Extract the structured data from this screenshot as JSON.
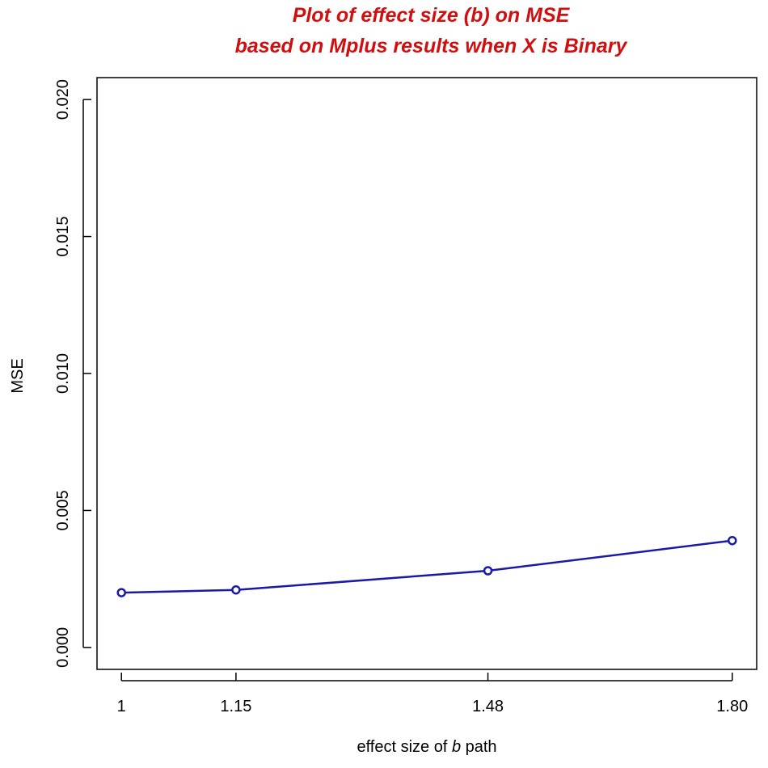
{
  "chart_data": {
    "type": "line",
    "title_lines": [
      "Plot of effect size (b) on MSE",
      "based on Mplus results when X is Binary"
    ],
    "title_color": "#d01010",
    "xlabel_prefix": "effect size of ",
    "xlabel_italic": "b",
    "xlabel_suffix": " path",
    "ylabel": "MSE",
    "x": [
      1,
      1.15,
      1.48,
      1.8
    ],
    "x_tick_labels": [
      "1",
      "1.15",
      "1.48",
      "1.80"
    ],
    "series": [
      {
        "values": [
          0.002,
          0.0021,
          0.0028,
          0.0039
        ],
        "color": "#1a1aa6"
      }
    ],
    "yticks": [
      0.0,
      0.005,
      0.01,
      0.015,
      0.02
    ],
    "y_tick_labels": [
      "0.000",
      "0.005",
      "0.010",
      "0.015",
      "0.020"
    ],
    "xlim": [
      0.968,
      1.832
    ],
    "ylim": [
      -0.0008,
      0.0208
    ],
    "grid": false,
    "marker": "open-circle"
  }
}
